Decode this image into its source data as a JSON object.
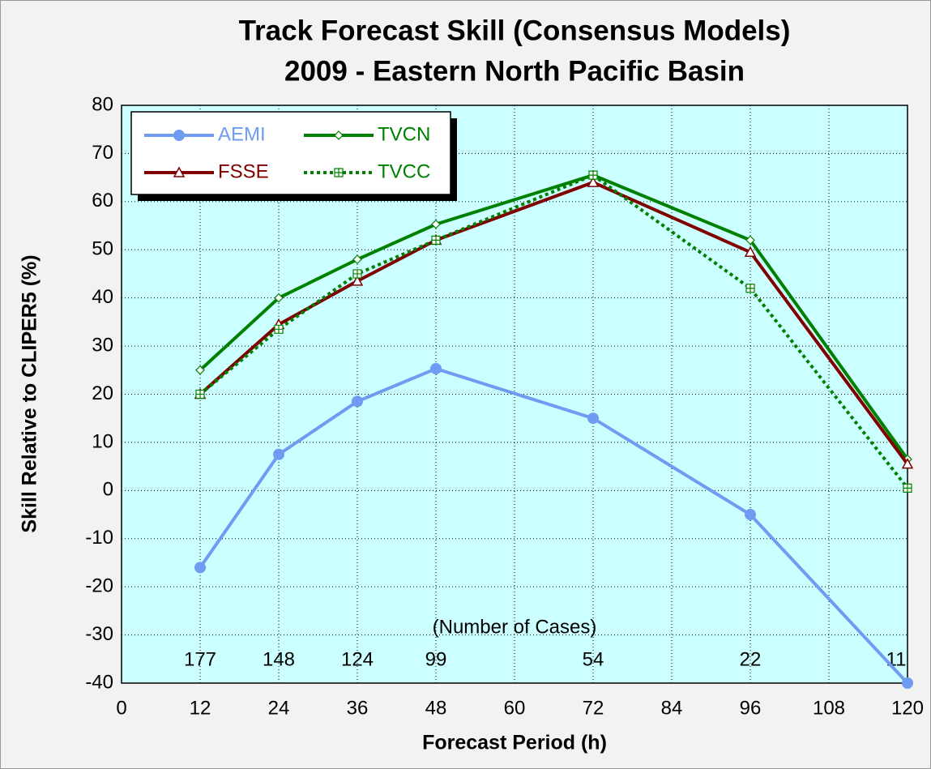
{
  "chart_data": {
    "type": "line",
    "title": "Track Forecast Skill (Consensus Models)",
    "subtitle": "2009 - Eastern North Pacific Basin",
    "x_label": "Forecast Period (h)",
    "y_label": "Skill Relative to CLIPER5 (%)",
    "annotation": "(Number of Cases)",
    "case_counts": [
      177,
      148,
      124,
      99,
      54,
      22,
      11
    ],
    "x": [
      12,
      24,
      36,
      48,
      72,
      96,
      120
    ],
    "series": [
      {
        "name": "AEMI",
        "color": "#6f9cf2",
        "marker": "circle",
        "dashed": false,
        "values": [
          -16,
          7.5,
          18.5,
          25.3,
          15,
          -5,
          -40
        ]
      },
      {
        "name": "TVCN",
        "color": "#008000",
        "marker": "diamond",
        "dashed": false,
        "values": [
          25,
          40,
          48,
          55.3,
          65.5,
          52,
          6.5
        ]
      },
      {
        "name": "FSSE",
        "color": "#800000",
        "marker": "triangle",
        "dashed": false,
        "values": [
          20,
          34.5,
          43.5,
          52,
          64,
          49.5,
          5.5
        ]
      },
      {
        "name": "TVCC",
        "color": "#008000",
        "marker": "square",
        "dashed": true,
        "values": [
          20,
          33.5,
          45,
          52,
          65.5,
          42,
          0.5
        ]
      }
    ],
    "xlim": [
      0,
      120
    ],
    "xticks": [
      0,
      12,
      24,
      36,
      48,
      60,
      72,
      84,
      96,
      108,
      120
    ],
    "ylim": [
      -40,
      80
    ],
    "yticks": [
      -40,
      -30,
      -20,
      -10,
      0,
      10,
      20,
      30,
      40,
      50,
      60,
      70,
      80
    ],
    "grid": true,
    "plot_background": "#ccffff",
    "legend": "top-left"
  }
}
